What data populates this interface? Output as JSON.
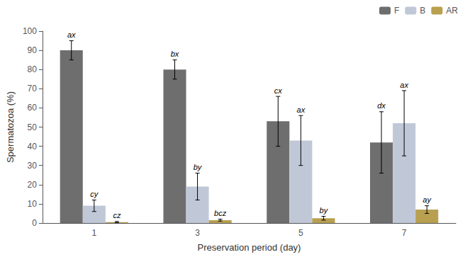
{
  "chart_data": {
    "type": "bar",
    "categories": [
      "1",
      "3",
      "5",
      "7"
    ],
    "xlabel": "Preservation period (day)",
    "ylabel": "Spermatozoa (%)",
    "series": [
      {
        "name": "F",
        "color": "#6e6e6e",
        "values": [
          90,
          80,
          53,
          42
        ],
        "errors": [
          5,
          5,
          13,
          16
        ],
        "labels": [
          "ax",
          "bx",
          "cx",
          "dx"
        ]
      },
      {
        "name": "B",
        "color": "#c0c8d8",
        "values": [
          9,
          19,
          43,
          52
        ],
        "errors": [
          3,
          7,
          13,
          17
        ],
        "labels": [
          "cy",
          "by",
          "ax",
          "ax"
        ]
      },
      {
        "name": "AR",
        "color": "#b8a050",
        "values": [
          0.5,
          1.5,
          2.5,
          7
        ],
        "errors": [
          0.3,
          0.5,
          1.0,
          2
        ],
        "labels": [
          "cz",
          "bcz",
          "by",
          "ay"
        ]
      }
    ],
    "ylim": [
      0,
      100
    ],
    "yticks": [
      0,
      10,
      20,
      30,
      40,
      50,
      60,
      70,
      80,
      90,
      100
    ],
    "grid": false,
    "legend": "upper right"
  }
}
